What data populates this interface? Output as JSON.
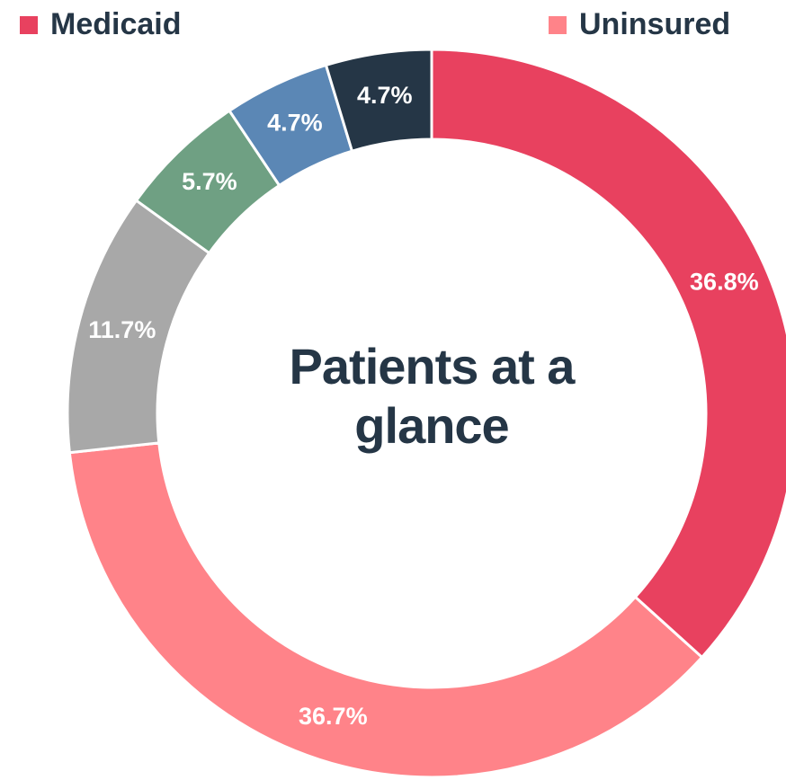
{
  "chart_data": {
    "type": "donut",
    "title": "Patients at a glance",
    "categories": [
      "Medicaid",
      "Uninsured",
      null,
      null,
      null,
      null
    ],
    "values": [
      36.8,
      36.7,
      11.7,
      5.7,
      4.7,
      4.7
    ],
    "value_labels": [
      "36.8%",
      "36.7%",
      "11.7%",
      "5.7%",
      "4.7%",
      "4.7%"
    ],
    "colors": [
      "#e8415f",
      "#ff8389",
      "#a8a8a8",
      "#6fa083",
      "#5b87b5",
      "#253646"
    ],
    "legend": "top"
  }
}
